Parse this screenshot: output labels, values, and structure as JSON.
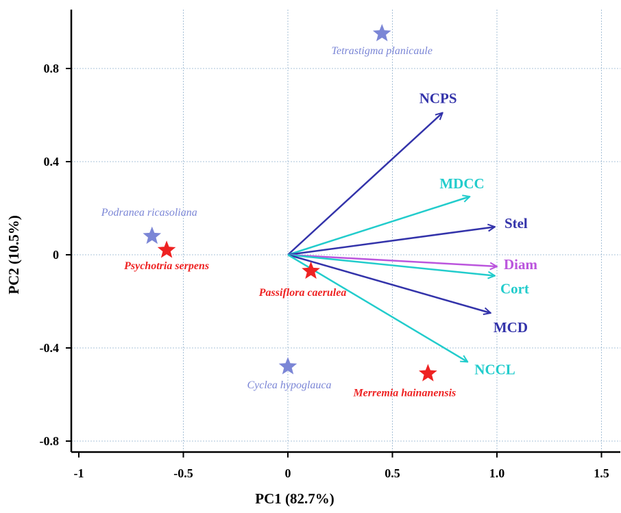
{
  "chart_data": {
    "type": "scatter",
    "subtype": "pca-biplot",
    "xlabel": "PC1 (82.7%)",
    "ylabel": "PC2 (10.5%)",
    "xlim": [
      -1,
      1.6
    ],
    "ylim": [
      -0.85,
      1.05
    ],
    "grid": true,
    "x_ticks": [
      {
        "value": -1,
        "label": "-1"
      },
      {
        "value": -0.5,
        "label": "-0.5"
      },
      {
        "value": 0,
        "label": "0"
      },
      {
        "value": 0.5,
        "label": "0.5"
      },
      {
        "value": 1.0,
        "label": "1.0"
      },
      {
        "value": 1.5,
        "label": "1.5"
      }
    ],
    "y_ticks": [
      {
        "value": 0.8,
        "label": "0.8"
      },
      {
        "value": 0.4,
        "label": "0.4"
      },
      {
        "value": 0,
        "label": "0"
      },
      {
        "value": -0.4,
        "label": "-0.4"
      },
      {
        "value": -0.8,
        "label": "-0.8"
      }
    ],
    "vectors": [
      {
        "name": "NCPS",
        "x": 0.74,
        "y": 0.61,
        "color": "#3333aa"
      },
      {
        "name": "MDCC",
        "x": 0.87,
        "y": 0.25,
        "color": "#22cccc"
      },
      {
        "name": "Stel",
        "x": 0.99,
        "y": 0.12,
        "color": "#3333aa"
      },
      {
        "name": "Diam",
        "x": 1.0,
        "y": -0.05,
        "color": "#bb55dd"
      },
      {
        "name": "Cort",
        "x": 0.99,
        "y": -0.09,
        "color": "#22cccc"
      },
      {
        "name": "MCD",
        "x": 0.97,
        "y": -0.25,
        "color": "#3333aa"
      },
      {
        "name": "NCCL",
        "x": 0.86,
        "y": -0.46,
        "color": "#22cccc"
      }
    ],
    "species": [
      {
        "name": "Tetrastigma planicaule",
        "x": 0.45,
        "y": 0.95,
        "color": "#7b86d6"
      },
      {
        "name": "Podranea ricasoliana",
        "x": -0.65,
        "y": 0.08,
        "color": "#7b86d6"
      },
      {
        "name": "Psychotria serpens",
        "x": -0.58,
        "y": 0.02,
        "color": "#ee2222"
      },
      {
        "name": "Passiflora caerulea",
        "x": 0.11,
        "y": -0.07,
        "color": "#ee2222"
      },
      {
        "name": "Cyclea hypoglauca",
        "x": 0.0,
        "y": -0.48,
        "color": "#7b86d6"
      },
      {
        "name": "Merremia hainanensis",
        "x": 0.67,
        "y": -0.51,
        "color": "#ee2222"
      }
    ]
  }
}
